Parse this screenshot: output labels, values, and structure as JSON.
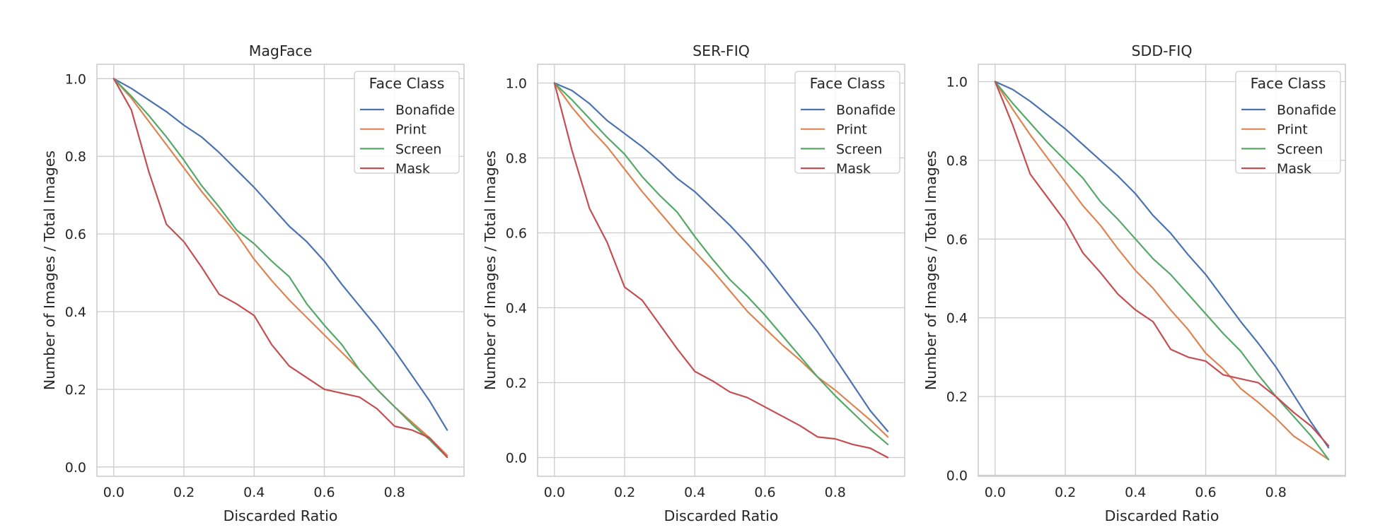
{
  "chart_data": [
    {
      "type": "line",
      "title": "MagFace",
      "xlabel": "Discarded Ratio",
      "ylabel": "Number of Images / Total Images",
      "xlim": [
        -0.048,
        0.998
      ],
      "ylim": [
        -0.024,
        1.037
      ],
      "xticks": [
        "0.0",
        "0.2",
        "0.4",
        "0.6",
        "0.8"
      ],
      "yticks": [
        "0.0",
        "0.2",
        "0.4",
        "0.6",
        "0.8",
        "1.0"
      ],
      "grid": true,
      "legend": {
        "title": "Face Class",
        "position": "top-right"
      },
      "x": [
        0.0,
        0.05,
        0.1,
        0.15,
        0.2,
        0.25,
        0.3,
        0.35,
        0.4,
        0.45,
        0.5,
        0.55,
        0.6,
        0.65,
        0.7,
        0.75,
        0.8,
        0.85,
        0.9,
        0.95
      ],
      "series": [
        {
          "name": "Bonafide",
          "color": "#4c72b0",
          "values": [
            1.0,
            0.975,
            0.945,
            0.915,
            0.88,
            0.85,
            0.81,
            0.765,
            0.72,
            0.67,
            0.62,
            0.58,
            0.53,
            0.47,
            0.415,
            0.36,
            0.3,
            0.235,
            0.17,
            0.095
          ]
        },
        {
          "name": "Print",
          "color": "#dd8452",
          "values": [
            1.0,
            0.95,
            0.89,
            0.83,
            0.77,
            0.71,
            0.655,
            0.6,
            0.535,
            0.48,
            0.43,
            0.385,
            0.34,
            0.295,
            0.25,
            0.2,
            0.155,
            0.115,
            0.075,
            0.03
          ]
        },
        {
          "name": "Screen",
          "color": "#55a868",
          "values": [
            1.0,
            0.955,
            0.905,
            0.85,
            0.79,
            0.725,
            0.67,
            0.61,
            0.575,
            0.53,
            0.49,
            0.42,
            0.365,
            0.315,
            0.25,
            0.2,
            0.155,
            0.11,
            0.07,
            0.025
          ]
        },
        {
          "name": "Mask",
          "color": "#c44e52",
          "values": [
            1.0,
            0.92,
            0.76,
            0.625,
            0.58,
            0.515,
            0.445,
            0.42,
            0.39,
            0.315,
            0.26,
            0.23,
            0.2,
            0.19,
            0.18,
            0.15,
            0.105,
            0.095,
            0.075,
            0.025
          ]
        }
      ]
    },
    {
      "type": "line",
      "title": "SER-FIQ",
      "xlabel": "Discarded Ratio",
      "ylabel": "Number of Images / Total Images",
      "xlim": [
        -0.048,
        0.998
      ],
      "ylim": [
        -0.05,
        1.05
      ],
      "xticks": [
        "0.0",
        "0.2",
        "0.4",
        "0.6",
        "0.8"
      ],
      "yticks": [
        "0.0",
        "0.2",
        "0.4",
        "0.6",
        "0.8",
        "1.0"
      ],
      "grid": true,
      "legend": {
        "title": "Face Class",
        "position": "top-right"
      },
      "x": [
        0.0,
        0.05,
        0.1,
        0.15,
        0.2,
        0.25,
        0.3,
        0.35,
        0.4,
        0.45,
        0.5,
        0.55,
        0.6,
        0.65,
        0.7,
        0.75,
        0.8,
        0.85,
        0.9,
        0.95
      ],
      "series": [
        {
          "name": "Bonafide",
          "color": "#4c72b0",
          "values": [
            1.0,
            0.98,
            0.945,
            0.9,
            0.865,
            0.83,
            0.79,
            0.745,
            0.71,
            0.665,
            0.62,
            0.57,
            0.515,
            0.455,
            0.395,
            0.335,
            0.265,
            0.195,
            0.125,
            0.07
          ]
        },
        {
          "name": "Print",
          "color": "#dd8452",
          "values": [
            1.0,
            0.935,
            0.88,
            0.83,
            0.77,
            0.71,
            0.655,
            0.6,
            0.55,
            0.5,
            0.445,
            0.39,
            0.345,
            0.3,
            0.26,
            0.215,
            0.18,
            0.14,
            0.1,
            0.055
          ]
        },
        {
          "name": "Screen",
          "color": "#55a868",
          "values": [
            1.0,
            0.955,
            0.905,
            0.855,
            0.81,
            0.75,
            0.7,
            0.655,
            0.59,
            0.53,
            0.475,
            0.43,
            0.38,
            0.325,
            0.27,
            0.215,
            0.165,
            0.12,
            0.075,
            0.035
          ]
        },
        {
          "name": "Mask",
          "color": "#c44e52",
          "values": [
            1.0,
            0.82,
            0.665,
            0.575,
            0.455,
            0.42,
            0.355,
            0.29,
            0.23,
            0.205,
            0.175,
            0.16,
            0.135,
            0.11,
            0.085,
            0.055,
            0.05,
            0.035,
            0.025,
            0.0
          ]
        }
      ]
    },
    {
      "type": "line",
      "title": "SDD-FIQ",
      "xlabel": "Discarded Ratio",
      "ylabel": "Number of Images / Total Images",
      "xlim": [
        -0.048,
        0.998
      ],
      "ylim": [
        -0.0027,
        1.044
      ],
      "xticks": [
        "0.0",
        "0.2",
        "0.4",
        "0.6",
        "0.8"
      ],
      "yticks": [
        "0.0",
        "0.2",
        "0.4",
        "0.6",
        "0.8",
        "1.0"
      ],
      "grid": true,
      "legend": {
        "title": "Face Class",
        "position": "top-right"
      },
      "x": [
        0.0,
        0.05,
        0.1,
        0.15,
        0.2,
        0.25,
        0.3,
        0.35,
        0.4,
        0.45,
        0.5,
        0.55,
        0.6,
        0.65,
        0.7,
        0.75,
        0.8,
        0.85,
        0.9,
        0.95
      ],
      "series": [
        {
          "name": "Bonafide",
          "color": "#4c72b0",
          "values": [
            1.0,
            0.98,
            0.95,
            0.915,
            0.88,
            0.84,
            0.8,
            0.76,
            0.715,
            0.66,
            0.615,
            0.56,
            0.51,
            0.45,
            0.39,
            0.335,
            0.275,
            0.205,
            0.135,
            0.07
          ]
        },
        {
          "name": "Print",
          "color": "#dd8452",
          "values": [
            1.0,
            0.93,
            0.865,
            0.805,
            0.745,
            0.685,
            0.635,
            0.575,
            0.52,
            0.475,
            0.42,
            0.37,
            0.31,
            0.27,
            0.22,
            0.185,
            0.145,
            0.1,
            0.07,
            0.04
          ]
        },
        {
          "name": "Screen",
          "color": "#55a868",
          "values": [
            1.0,
            0.945,
            0.895,
            0.845,
            0.8,
            0.755,
            0.695,
            0.65,
            0.6,
            0.55,
            0.51,
            0.46,
            0.41,
            0.36,
            0.315,
            0.255,
            0.2,
            0.15,
            0.1,
            0.04
          ]
        },
        {
          "name": "Mask",
          "color": "#c44e52",
          "values": [
            1.0,
            0.89,
            0.765,
            0.705,
            0.645,
            0.565,
            0.515,
            0.46,
            0.42,
            0.39,
            0.32,
            0.3,
            0.29,
            0.255,
            0.245,
            0.235,
            0.2,
            0.16,
            0.125,
            0.075
          ]
        }
      ]
    }
  ]
}
